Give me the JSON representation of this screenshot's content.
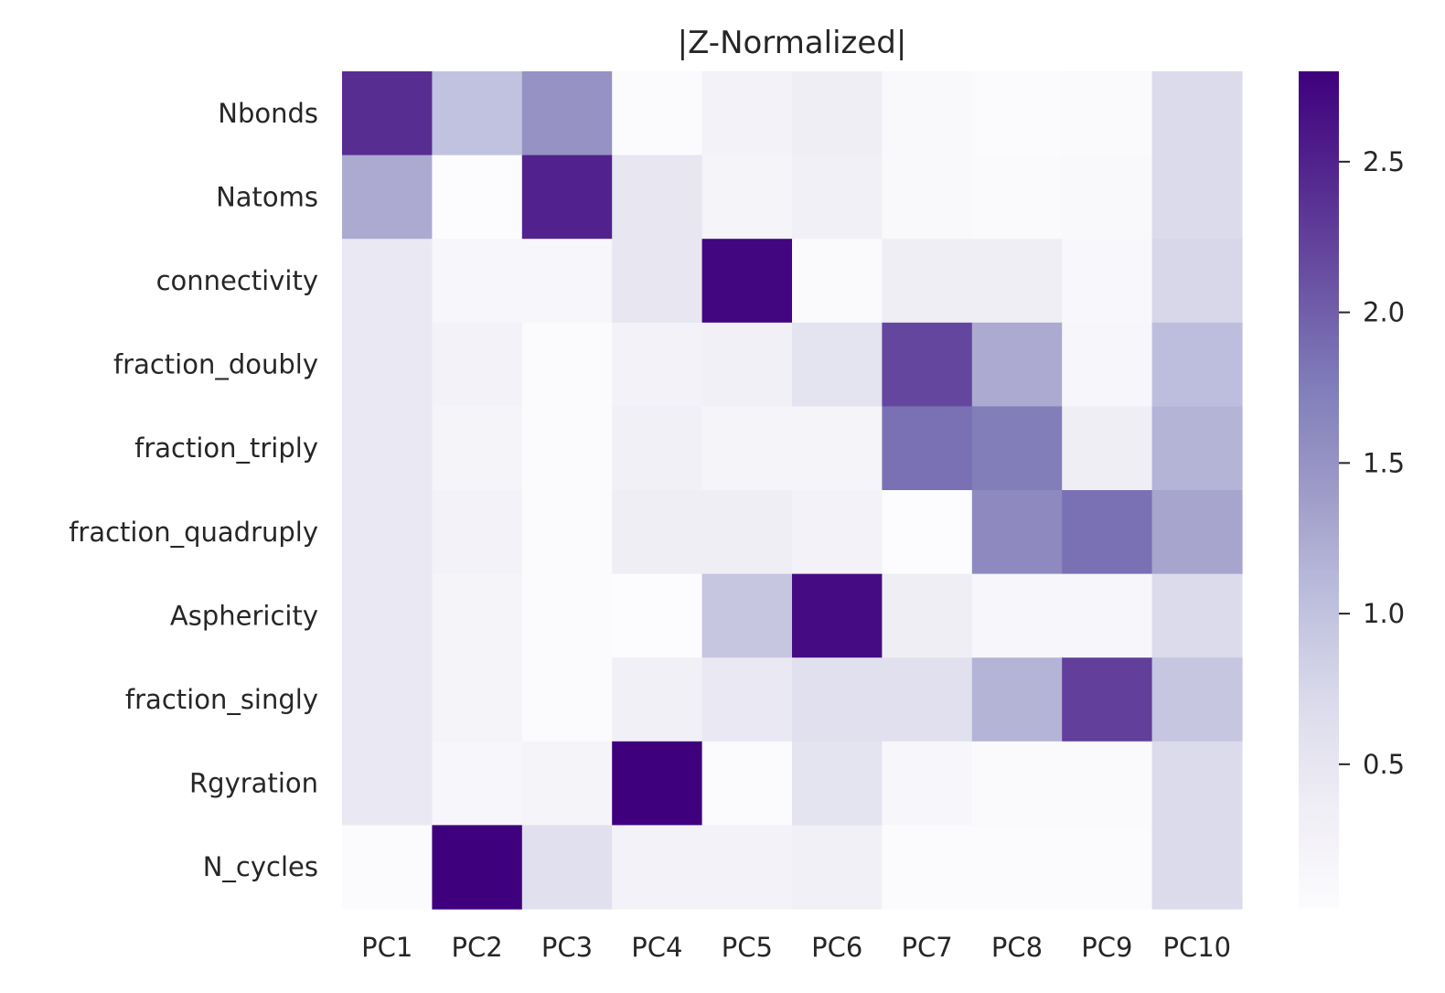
{
  "chart_data": {
    "type": "heatmap",
    "title": "|Z-Normalized|",
    "x_categories": [
      "PC1",
      "PC2",
      "PC3",
      "PC4",
      "PC5",
      "PC6",
      "PC7",
      "PC8",
      "PC9",
      "PC10"
    ],
    "y_categories": [
      "Nbonds",
      "Natoms",
      "connectivity",
      "fraction_doubly",
      "fraction_triply",
      "fraction_quadruply",
      "Asphericity",
      "fraction_singly",
      "Rgyration",
      "N_cycles"
    ],
    "values": [
      [
        2.4,
        1.0,
        1.5,
        0.05,
        0.25,
        0.35,
        0.1,
        0.05,
        0.08,
        0.7
      ],
      [
        1.25,
        0.02,
        2.5,
        0.5,
        0.2,
        0.3,
        0.1,
        0.08,
        0.1,
        0.7
      ],
      [
        0.45,
        0.15,
        0.15,
        0.5,
        2.75,
        0.08,
        0.35,
        0.35,
        0.12,
        0.75
      ],
      [
        0.45,
        0.25,
        0.05,
        0.25,
        0.3,
        0.55,
        2.2,
        1.25,
        0.15,
        1.05
      ],
      [
        0.45,
        0.2,
        0.05,
        0.3,
        0.2,
        0.2,
        1.85,
        1.75,
        0.35,
        1.15
      ],
      [
        0.45,
        0.25,
        0.05,
        0.35,
        0.35,
        0.25,
        0.02,
        1.6,
        1.85,
        1.3
      ],
      [
        0.45,
        0.2,
        0.05,
        0.02,
        0.95,
        2.7,
        0.35,
        0.15,
        0.15,
        0.7
      ],
      [
        0.45,
        0.2,
        0.05,
        0.3,
        0.45,
        0.6,
        0.6,
        1.15,
        2.25,
        0.95
      ],
      [
        0.45,
        0.15,
        0.2,
        2.8,
        0.05,
        0.55,
        0.15,
        0.08,
        0.08,
        0.7
      ],
      [
        0.05,
        2.8,
        0.6,
        0.25,
        0.25,
        0.3,
        0.05,
        0.05,
        0.05,
        0.7
      ]
    ],
    "colorbar": {
      "range": [
        0.02,
        2.8
      ],
      "ticks": [
        0.5,
        1.0,
        1.5,
        2.0,
        2.5
      ],
      "tick_labels": [
        "0.5",
        "1.0",
        "1.5",
        "2.0",
        "2.5"
      ],
      "colormap": "Purples"
    },
    "xlabel": "",
    "ylabel": ""
  }
}
